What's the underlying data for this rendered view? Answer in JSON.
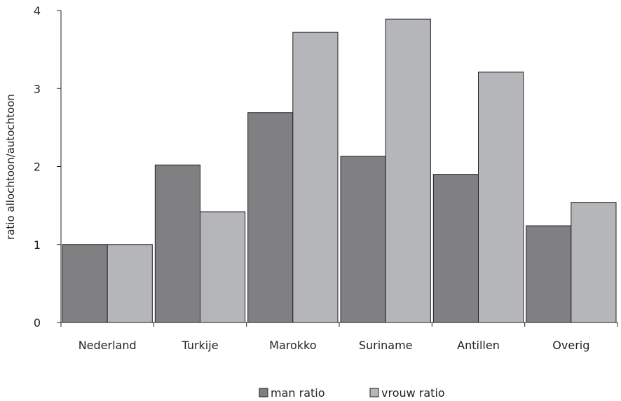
{
  "chart_data": {
    "type": "bar",
    "ylabel": "ratio allochtoon/autochtoon",
    "ylim": [
      0,
      4
    ],
    "yticks": [
      "0",
      "1",
      "2",
      "3",
      "4"
    ],
    "categories": [
      "Nederland",
      "Turkije",
      "Marokko",
      "Suriname",
      "Antillen",
      "Overig"
    ],
    "series": [
      {
        "name": "man ratio",
        "color": "#808083",
        "values": [
          1.0,
          2.02,
          2.69,
          2.13,
          1.9,
          1.24
        ]
      },
      {
        "name": "vrouw ratio",
        "color": "#b5b6b9",
        "values": [
          1.0,
          1.42,
          3.72,
          3.89,
          3.21,
          1.54
        ]
      }
    ],
    "grid": false,
    "legend_position": "bottom"
  }
}
